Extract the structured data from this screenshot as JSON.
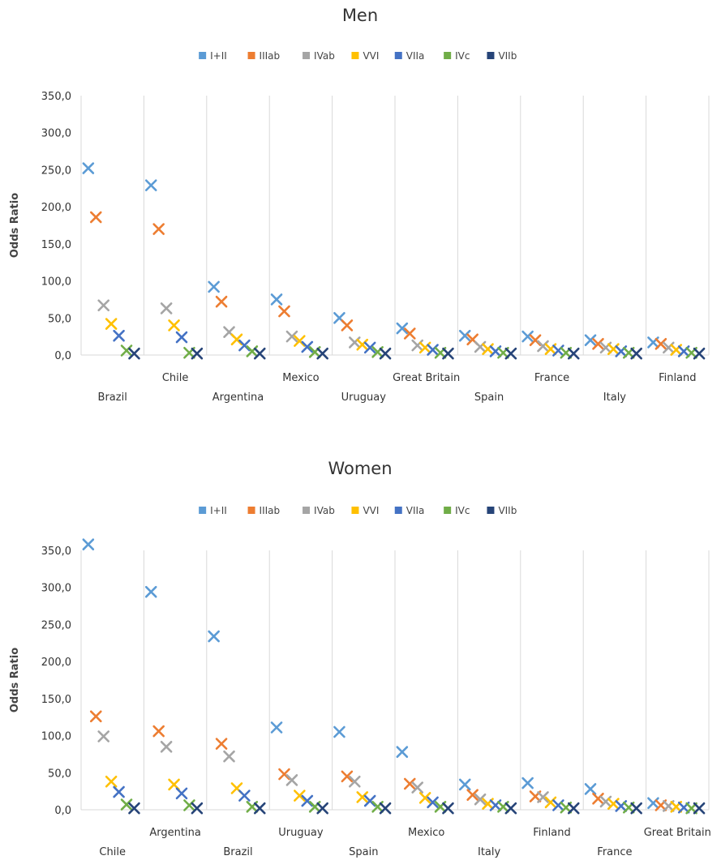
{
  "chart_data": [
    {
      "type": "scatter",
      "title": "Men",
      "ylabel": "Odds Ratio",
      "xlabel": "",
      "ylim": [
        0,
        350
      ],
      "y_ticks": [
        "0,0",
        "50,0",
        "100,0",
        "150,0",
        "200,0",
        "250,0",
        "300,0",
        "350,0"
      ],
      "grid": "vertical",
      "legend_placement": "top",
      "categories": [
        "Brazil",
        "Chile",
        "Argentina",
        "Mexico",
        "Uruguay",
        "Great Britain",
        "Spain",
        "France",
        "Italy",
        "Finland"
      ],
      "series": [
        {
          "name": "I+II",
          "color": "#5b9bd5",
          "values": [
            252,
            229,
            92,
            75,
            50,
            36,
            26,
            25,
            20,
            17
          ]
        },
        {
          "name": "IIIab",
          "color": "#ed7d31",
          "values": [
            186,
            170,
            72,
            59,
            40,
            29,
            21,
            20,
            15,
            15
          ]
        },
        {
          "name": "IVab",
          "color": "#a5a5a5",
          "values": [
            67,
            63,
            31,
            25,
            17,
            13,
            11,
            12,
            10,
            10
          ]
        },
        {
          "name": "VVI",
          "color": "#ffc000",
          "values": [
            42,
            40,
            21,
            19,
            14,
            10,
            8,
            8,
            8,
            7
          ]
        },
        {
          "name": "VIIa",
          "color": "#4472c4",
          "values": [
            26,
            24,
            13,
            11,
            10,
            7,
            5,
            6,
            5,
            5
          ]
        },
        {
          "name": "IVc",
          "color": "#70ad47",
          "values": [
            6,
            3,
            5,
            4,
            4,
            3,
            3,
            3,
            3,
            3
          ]
        },
        {
          "name": "VIIb",
          "color": "#264478",
          "values": [
            2,
            2,
            2,
            2,
            2,
            2,
            2,
            2,
            2,
            2
          ]
        }
      ]
    },
    {
      "type": "scatter",
      "title": "Women",
      "ylabel": "Odds Ratio",
      "xlabel": "",
      "ylim": [
        0,
        350
      ],
      "y_ticks": [
        "0,0",
        "50,0",
        "100,0",
        "150,0",
        "200,0",
        "250,0",
        "300,0",
        "350,0"
      ],
      "grid": "vertical",
      "legend_placement": "top",
      "categories": [
        "Chile",
        "Argentina",
        "Brazil",
        "Uruguay",
        "Spain",
        "Mexico",
        "Italy",
        "Finland",
        "France",
        "Great Britain"
      ],
      "series": [
        {
          "name": "I+II",
          "color": "#5b9bd5",
          "values": [
            358,
            294,
            234,
            111,
            105,
            78,
            34,
            36,
            28,
            9
          ]
        },
        {
          "name": "IIIab",
          "color": "#ed7d31",
          "values": [
            126,
            106,
            89,
            48,
            45,
            35,
            20,
            18,
            15,
            6
          ]
        },
        {
          "name": "IVab",
          "color": "#a5a5a5",
          "values": [
            99,
            85,
            72,
            40,
            38,
            30,
            14,
            17,
            11,
            5
          ]
        },
        {
          "name": "VVI",
          "color": "#ffc000",
          "values": [
            38,
            34,
            29,
            19,
            17,
            16,
            8,
            10,
            8,
            4
          ]
        },
        {
          "name": "VIIa",
          "color": "#4472c4",
          "values": [
            24,
            22,
            19,
            12,
            12,
            10,
            6,
            6,
            5,
            3
          ]
        },
        {
          "name": "IVc",
          "color": "#70ad47",
          "values": [
            7,
            6,
            4,
            4,
            4,
            4,
            4,
            3,
            3,
            2
          ]
        },
        {
          "name": "VIIb",
          "color": "#264478",
          "values": [
            2,
            2,
            2,
            2,
            2,
            2,
            2,
            2,
            2,
            2
          ]
        }
      ]
    }
  ]
}
